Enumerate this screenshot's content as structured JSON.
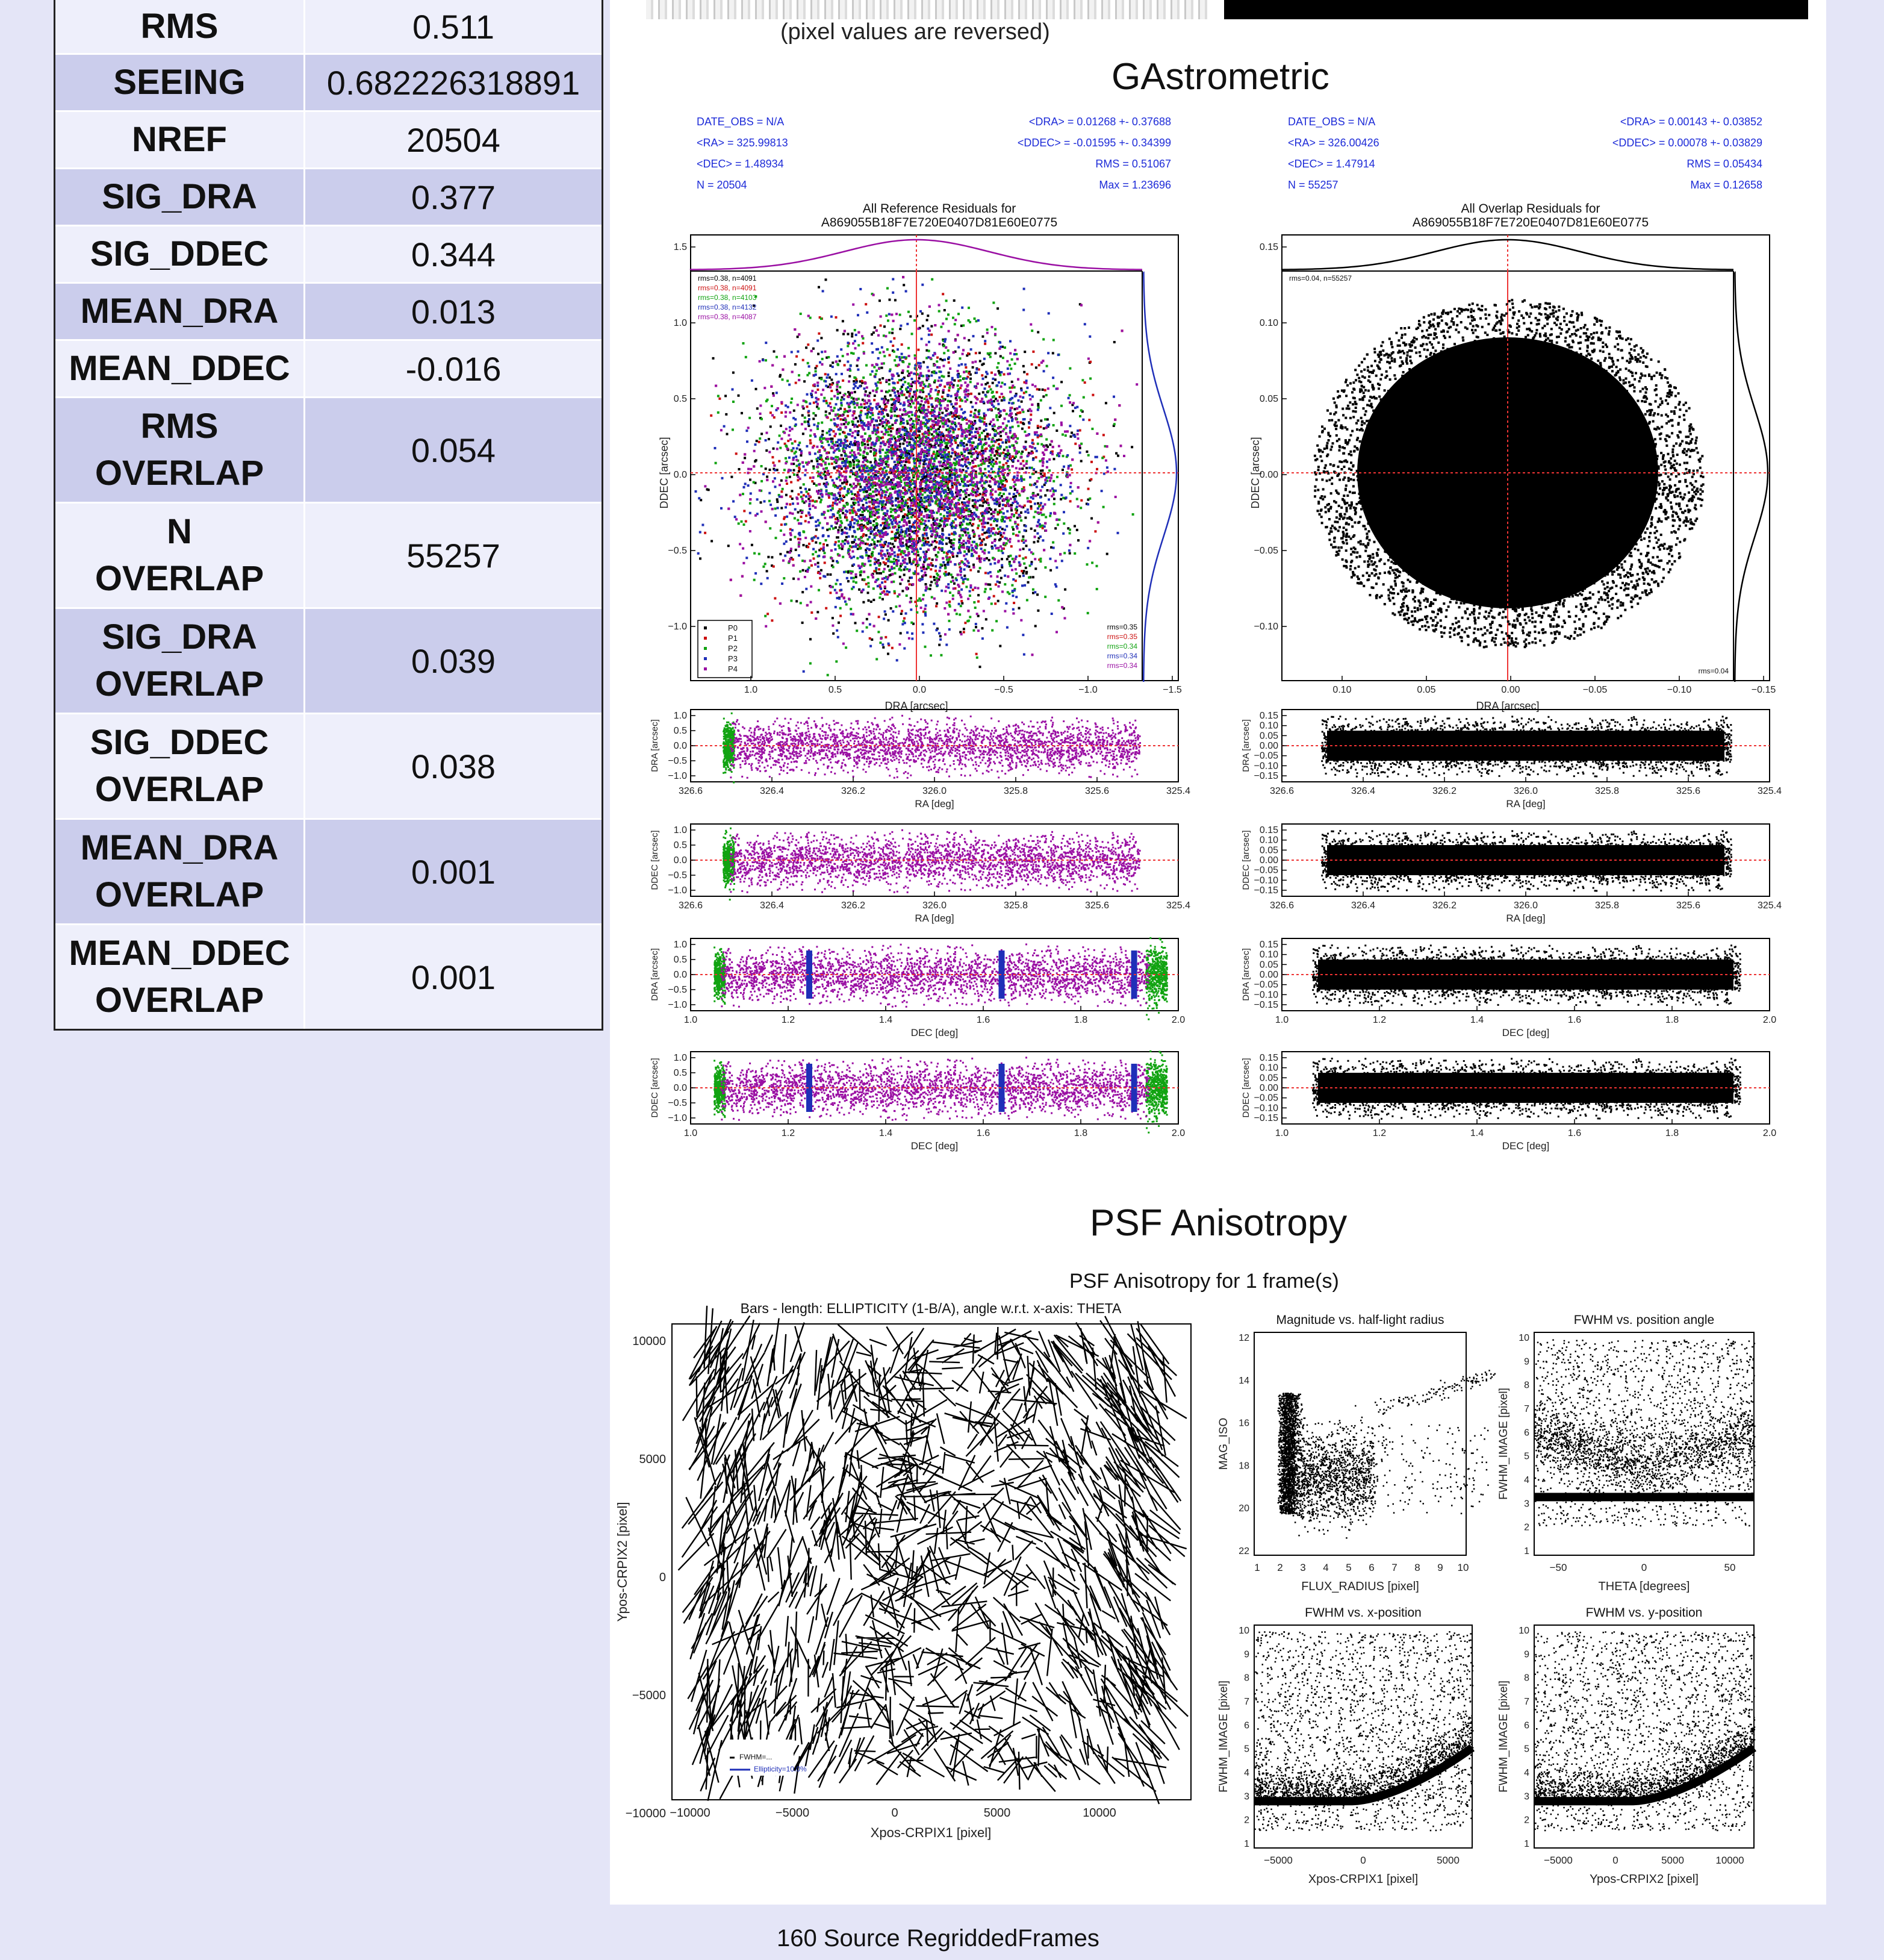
{
  "stats": [
    {
      "key": "RMS",
      "value": "0.511"
    },
    {
      "key": "SEEING",
      "value": "0.682226318891"
    },
    {
      "key": "NREF",
      "value": "20504"
    },
    {
      "key": "SIG_DRA",
      "value": "0.377"
    },
    {
      "key": "SIG_DDEC",
      "value": "0.344"
    },
    {
      "key": "MEAN_DRA",
      "value": "0.013"
    },
    {
      "key": "MEAN_DDEC",
      "value": "-0.016"
    },
    {
      "key": "RMS\nOVERLAP",
      "value": "0.054"
    },
    {
      "key": "N\nOVERLAP",
      "value": "55257"
    },
    {
      "key": "SIG_DRA\nOVERLAP",
      "value": "0.039"
    },
    {
      "key": "SIG_DDEC\nOVERLAP",
      "value": "0.038"
    },
    {
      "key": "MEAN_DRA\nOVERLAP",
      "value": "0.001"
    },
    {
      "key": "MEAN_DDEC\nOVERLAP",
      "value": "0.001"
    }
  ],
  "pixel_caption": "(pixel values are reversed)",
  "gastrometric": {
    "title": "GAstrometric",
    "left": {
      "info_l": [
        "DATE_OBS = N/A",
        "<RA> =  325.99813",
        "<DEC> =  1.48934",
        "N = 20504"
      ],
      "info_r": [
        "<DRA>  =  0.01268 +- 0.37688",
        "<DDEC> = -0.01595 +- 0.34399",
        "RMS = 0.51067",
        "Max = 1.23696"
      ],
      "title1": "All Reference Residuals for",
      "title2": "A869055B18F7E720E0407D81E60E0775",
      "xlabel": "DRA [arcsec]",
      "ylabel": "DDEC [arcsec]",
      "xticks": [
        "1.0",
        "0.5",
        "0.0",
        "−0.5",
        "−1.0",
        "−1.5"
      ],
      "yticks": [
        "1.5",
        "1.0",
        "0.5",
        "0.0",
        "−0.5",
        "−1.0"
      ],
      "legend": [
        "P0",
        "P1",
        "P2",
        "P3",
        "P4"
      ],
      "rms_top": [
        "rms=0.38, n=4091",
        "rms=0.38, n=4091",
        "rms=0.38, n=4103",
        "rms=0.38, n=4132",
        "rms=0.38, n=4087"
      ],
      "rms_bot": [
        "rms=0.35",
        "rms=0.35",
        "rms=0.34",
        "rms=0.34",
        "rms=0.34"
      ],
      "strips": [
        {
          "ylabel": "DRA [arcsec]",
          "xlabel": "RA [deg]",
          "yticks": [
            "1.0",
            "0.5",
            "0.0",
            "−0.5",
            "−1.0"
          ],
          "xticks": [
            "326.6",
            "326.4",
            "326.2",
            "326.0",
            "325.8",
            "325.6",
            "325.4"
          ]
        },
        {
          "ylabel": "DDEC [arcsec]",
          "xlabel": "RA [deg]",
          "yticks": [
            "1.0",
            "0.5",
            "0.0",
            "−0.5",
            "−1.0"
          ],
          "xticks": [
            "326.6",
            "326.4",
            "326.2",
            "326.0",
            "325.8",
            "325.6",
            "325.4"
          ]
        },
        {
          "ylabel": "DRA [arcsec]",
          "xlabel": "DEC [deg]",
          "yticks": [
            "1.0",
            "0.5",
            "0.0",
            "−0.5",
            "−1.0"
          ],
          "xticks": [
            "1.0",
            "1.2",
            "1.4",
            "1.6",
            "1.8",
            "2.0"
          ]
        },
        {
          "ylabel": "DDEC [arcsec]",
          "xlabel": "DEC [deg]",
          "yticks": [
            "1.0",
            "0.5",
            "0.0",
            "−0.5",
            "−1.0"
          ],
          "xticks": [
            "1.0",
            "1.2",
            "1.4",
            "1.6",
            "1.8",
            "2.0"
          ]
        }
      ]
    },
    "right": {
      "info_l": [
        "DATE_OBS = N/A",
        "<RA> =  326.00426",
        "<DEC> =  1.47914",
        "N = 55257"
      ],
      "info_r": [
        "<DRA>  =  0.00143 +- 0.03852",
        "<DDEC> = 0.00078 +- 0.03829",
        "RMS = 0.05434",
        "Max = 0.12658"
      ],
      "title1": "All Overlap Residuals for",
      "title2": "A869055B18F7E720E0407D81E60E0775",
      "xlabel": "DRA [arcsec]",
      "ylabel": "DDEC [arcsec]",
      "xticks": [
        "0.10",
        "0.05",
        "0.00",
        "−0.05",
        "−0.10",
        "−0.15"
      ],
      "yticks": [
        "0.15",
        "0.10",
        "0.05",
        "0.00",
        "−0.05",
        "−0.10"
      ],
      "rms_top": "rms=0.04, n=55257",
      "rms_bot": "rms=0.04",
      "strips": [
        {
          "ylabel": "DRA [arcsec]",
          "xlabel": "RA [deg]",
          "yticks": [
            "0.15",
            "0.10",
            "0.05",
            "0.00",
            "−0.05",
            "−0.10",
            "−0.15"
          ],
          "xticks": [
            "326.6",
            "326.4",
            "326.2",
            "326.0",
            "325.8",
            "325.6",
            "325.4"
          ]
        },
        {
          "ylabel": "DDEC [arcsec]",
          "xlabel": "RA [deg]",
          "yticks": [
            "0.15",
            "0.10",
            "0.05",
            "0.00",
            "−0.05",
            "−0.10",
            "−0.15"
          ],
          "xticks": [
            "326.6",
            "326.4",
            "326.2",
            "326.0",
            "325.8",
            "325.6",
            "325.4"
          ]
        },
        {
          "ylabel": "DRA [arcsec]",
          "xlabel": "DEC [deg]",
          "yticks": [
            "0.15",
            "0.10",
            "0.05",
            "0.00",
            "−0.05",
            "−0.10",
            "−0.15"
          ],
          "xticks": [
            "1.0",
            "1.2",
            "1.4",
            "1.6",
            "1.8",
            "2.0"
          ]
        },
        {
          "ylabel": "DDEC [arcsec]",
          "xlabel": "DEC [deg]",
          "yticks": [
            "0.15",
            "0.10",
            "0.05",
            "0.00",
            "−0.05",
            "−0.10",
            "−0.15"
          ],
          "xticks": [
            "1.0",
            "1.2",
            "1.4",
            "1.6",
            "1.8",
            "2.0"
          ]
        }
      ]
    }
  },
  "psf": {
    "title": "PSF Anisotropy",
    "subtitle": "PSF Anisotropy for 1 frame(s)",
    "whisker": {
      "title": "Bars - length: ELLIPTICITY (1-B/A), angle w.r.t. x-axis: THETA",
      "xlabel": "Xpos-CRPIX1 [pixel]",
      "ylabel": "Ypos-CRPIX2 [pixel]",
      "xticks": [
        "−10000",
        "−5000",
        "0",
        "5000",
        "10000"
      ],
      "yticks": [
        "10000",
        "5000",
        "0",
        "−5000",
        "−10000"
      ],
      "legend": [
        "FWHM=...",
        "Ellipticity=10.0%"
      ]
    },
    "mag": {
      "title": "Magnitude vs. half-light radius",
      "xlabel": "FLUX_RADIUS [pixel]",
      "ylabel": "MAG_ISO",
      "xticks": [
        "1",
        "2",
        "3",
        "4",
        "5",
        "6",
        "7",
        "8",
        "9",
        "10"
      ],
      "yticks": [
        "12",
        "14",
        "16",
        "18",
        "20",
        "22"
      ]
    },
    "fwhm_theta": {
      "title": "FWHM vs. position angle",
      "xlabel": "THETA [degrees]",
      "ylabel": "FWHM_IMAGE [pixel]",
      "xticks": [
        "−50",
        "0",
        "50"
      ],
      "yticks": [
        "10",
        "9",
        "8",
        "7",
        "6",
        "5",
        "4",
        "3",
        "2",
        "1"
      ]
    },
    "fwhm_x": {
      "title": "FWHM vs. x-position",
      "xlabel": "Xpos-CRPIX1 [pixel]",
      "ylabel": "FWHM_IMAGE [pixel]",
      "xticks": [
        "−5000",
        "0",
        "5000"
      ],
      "yticks": [
        "10",
        "9",
        "8",
        "7",
        "6",
        "5",
        "4",
        "3",
        "2",
        "1"
      ]
    },
    "fwhm_y": {
      "title": "FWHM vs. y-position",
      "xlabel": "Ypos-CRPIX2 [pixel]",
      "ylabel": "FWHM_IMAGE [pixel]",
      "xticks": [
        "−5000",
        "0",
        "5000",
        "10000"
      ],
      "yticks": [
        "10",
        "9",
        "8",
        "7",
        "6",
        "5",
        "4",
        "3",
        "2",
        "1"
      ]
    }
  },
  "footer": "160 Source RegriddedFrames",
  "colors": {
    "background": "#e4e5f7",
    "row_light": "#eeeffb",
    "row_dark": "#cbcdec",
    "series": [
      "#000000",
      "#cc1111",
      "#11a311",
      "#1f2fb8",
      "#9a0fa3"
    ],
    "info_blue": "#1d2bd8"
  }
}
